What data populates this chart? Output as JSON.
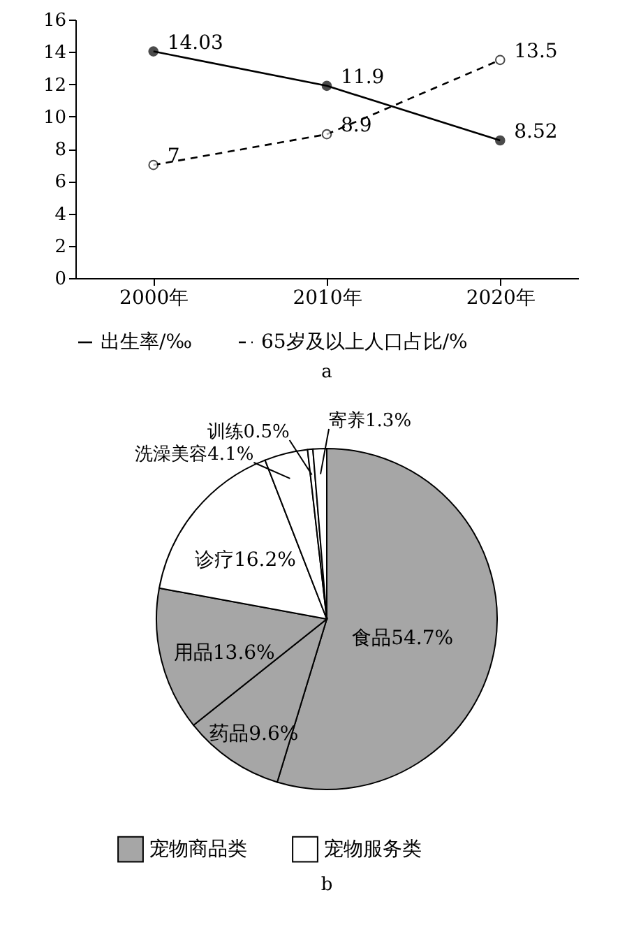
{
  "chart_data": [
    {
      "type": "line",
      "categories": [
        "2000年",
        "2010年",
        "2020年"
      ],
      "ylim": [
        0,
        16
      ],
      "yticks": [
        0,
        2,
        4,
        6,
        8,
        10,
        12,
        14,
        16
      ],
      "series": [
        {
          "name": "出生率/‰",
          "color": "#000000",
          "values": [
            14.03,
            11.9,
            8.52
          ],
          "line_style": "solid"
        },
        {
          "name": "65岁及以上人口占比/%",
          "color": "#000000",
          "values": [
            7,
            8.9,
            13.5
          ],
          "line_style": "dashed"
        }
      ],
      "marker": "circle",
      "data_labels": true,
      "legend": "bottom",
      "annotations": [
        "a"
      ]
    },
    {
      "type": "pie",
      "categories": [
        "食品",
        "药品",
        "用品",
        "诊疗",
        "洗澡美容",
        "训练",
        "寄养"
      ],
      "values": [
        54.7,
        9.6,
        13.6,
        16.2,
        4.1,
        0.5,
        1.3
      ],
      "colors": [
        "#a6a6a6",
        "#a6a6a6",
        "#a6a6a6",
        "#ffffff",
        "#ffffff",
        "#ffffff",
        "#ffffff"
      ],
      "value_labels": [
        "54.7%",
        "9.6%",
        "13.6%",
        "16.2%",
        "4.1%",
        "0.5%",
        "1.3%"
      ],
      "annotations": [
        "宠物商品类",
        "宠物服务类",
        "b"
      ]
    }
  ]
}
